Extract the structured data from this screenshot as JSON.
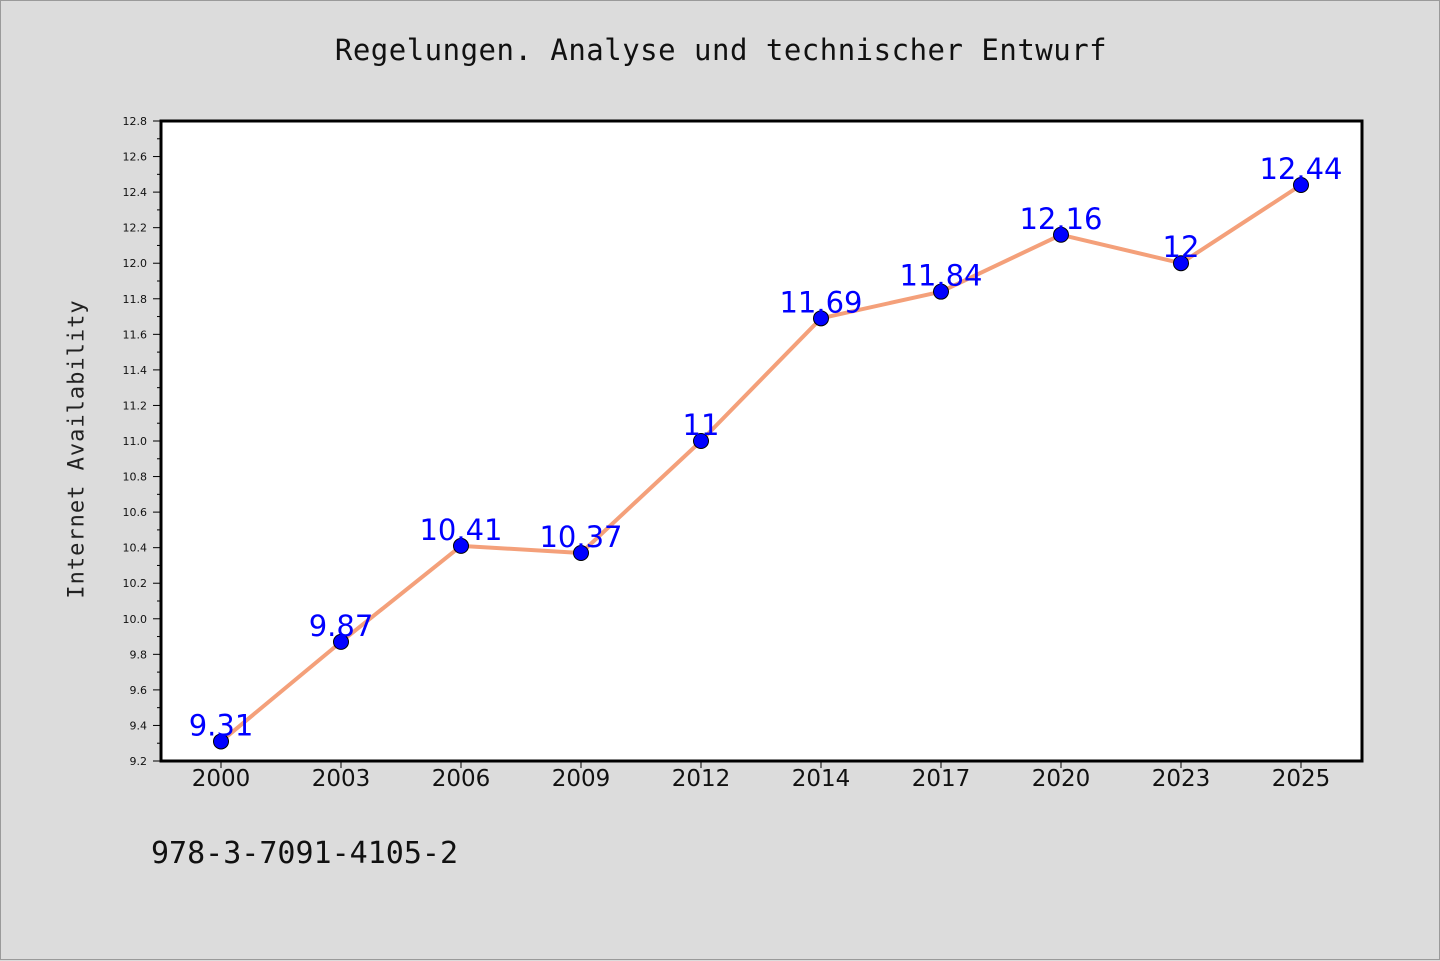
{
  "chart_data": {
    "type": "line",
    "title": "Regelungen. Analyse und technischer Entwurf",
    "ylabel": "Internet Availability",
    "xlabel": "",
    "categories": [
      "2000",
      "2003",
      "2006",
      "2009",
      "2012",
      "2014",
      "2017",
      "2020",
      "2023",
      "2025"
    ],
    "series": [
      {
        "values": [
          9.31,
          9.87,
          10.41,
          10.37,
          11,
          11.69,
          11.84,
          12.16,
          12,
          12.44
        ],
        "point_labels": [
          "9.31",
          "9.87",
          "10.41",
          "10.37",
          "11",
          "11.69",
          "11.84",
          "12.16",
          "12",
          "12.44"
        ]
      }
    ],
    "ylim": [
      9.2,
      12.8
    ],
    "yticks": [
      "9.2",
      "9.4",
      "9.6",
      "9.8",
      "10.0",
      "10.2",
      "10.4",
      "10.6",
      "10.8",
      "11.0",
      "11.2",
      "11.4",
      "11.6",
      "11.8",
      "12.0",
      "12.2",
      "12.4",
      "12.6",
      "12.8"
    ],
    "grid": false,
    "colors": {
      "line": "#f4a07a",
      "marker": "#0000ff",
      "label": "#0000ff",
      "background": "#dcdcdc",
      "plot_background": "#ffffff"
    }
  },
  "footer": {
    "isbn": "978-3-7091-4105-2"
  }
}
